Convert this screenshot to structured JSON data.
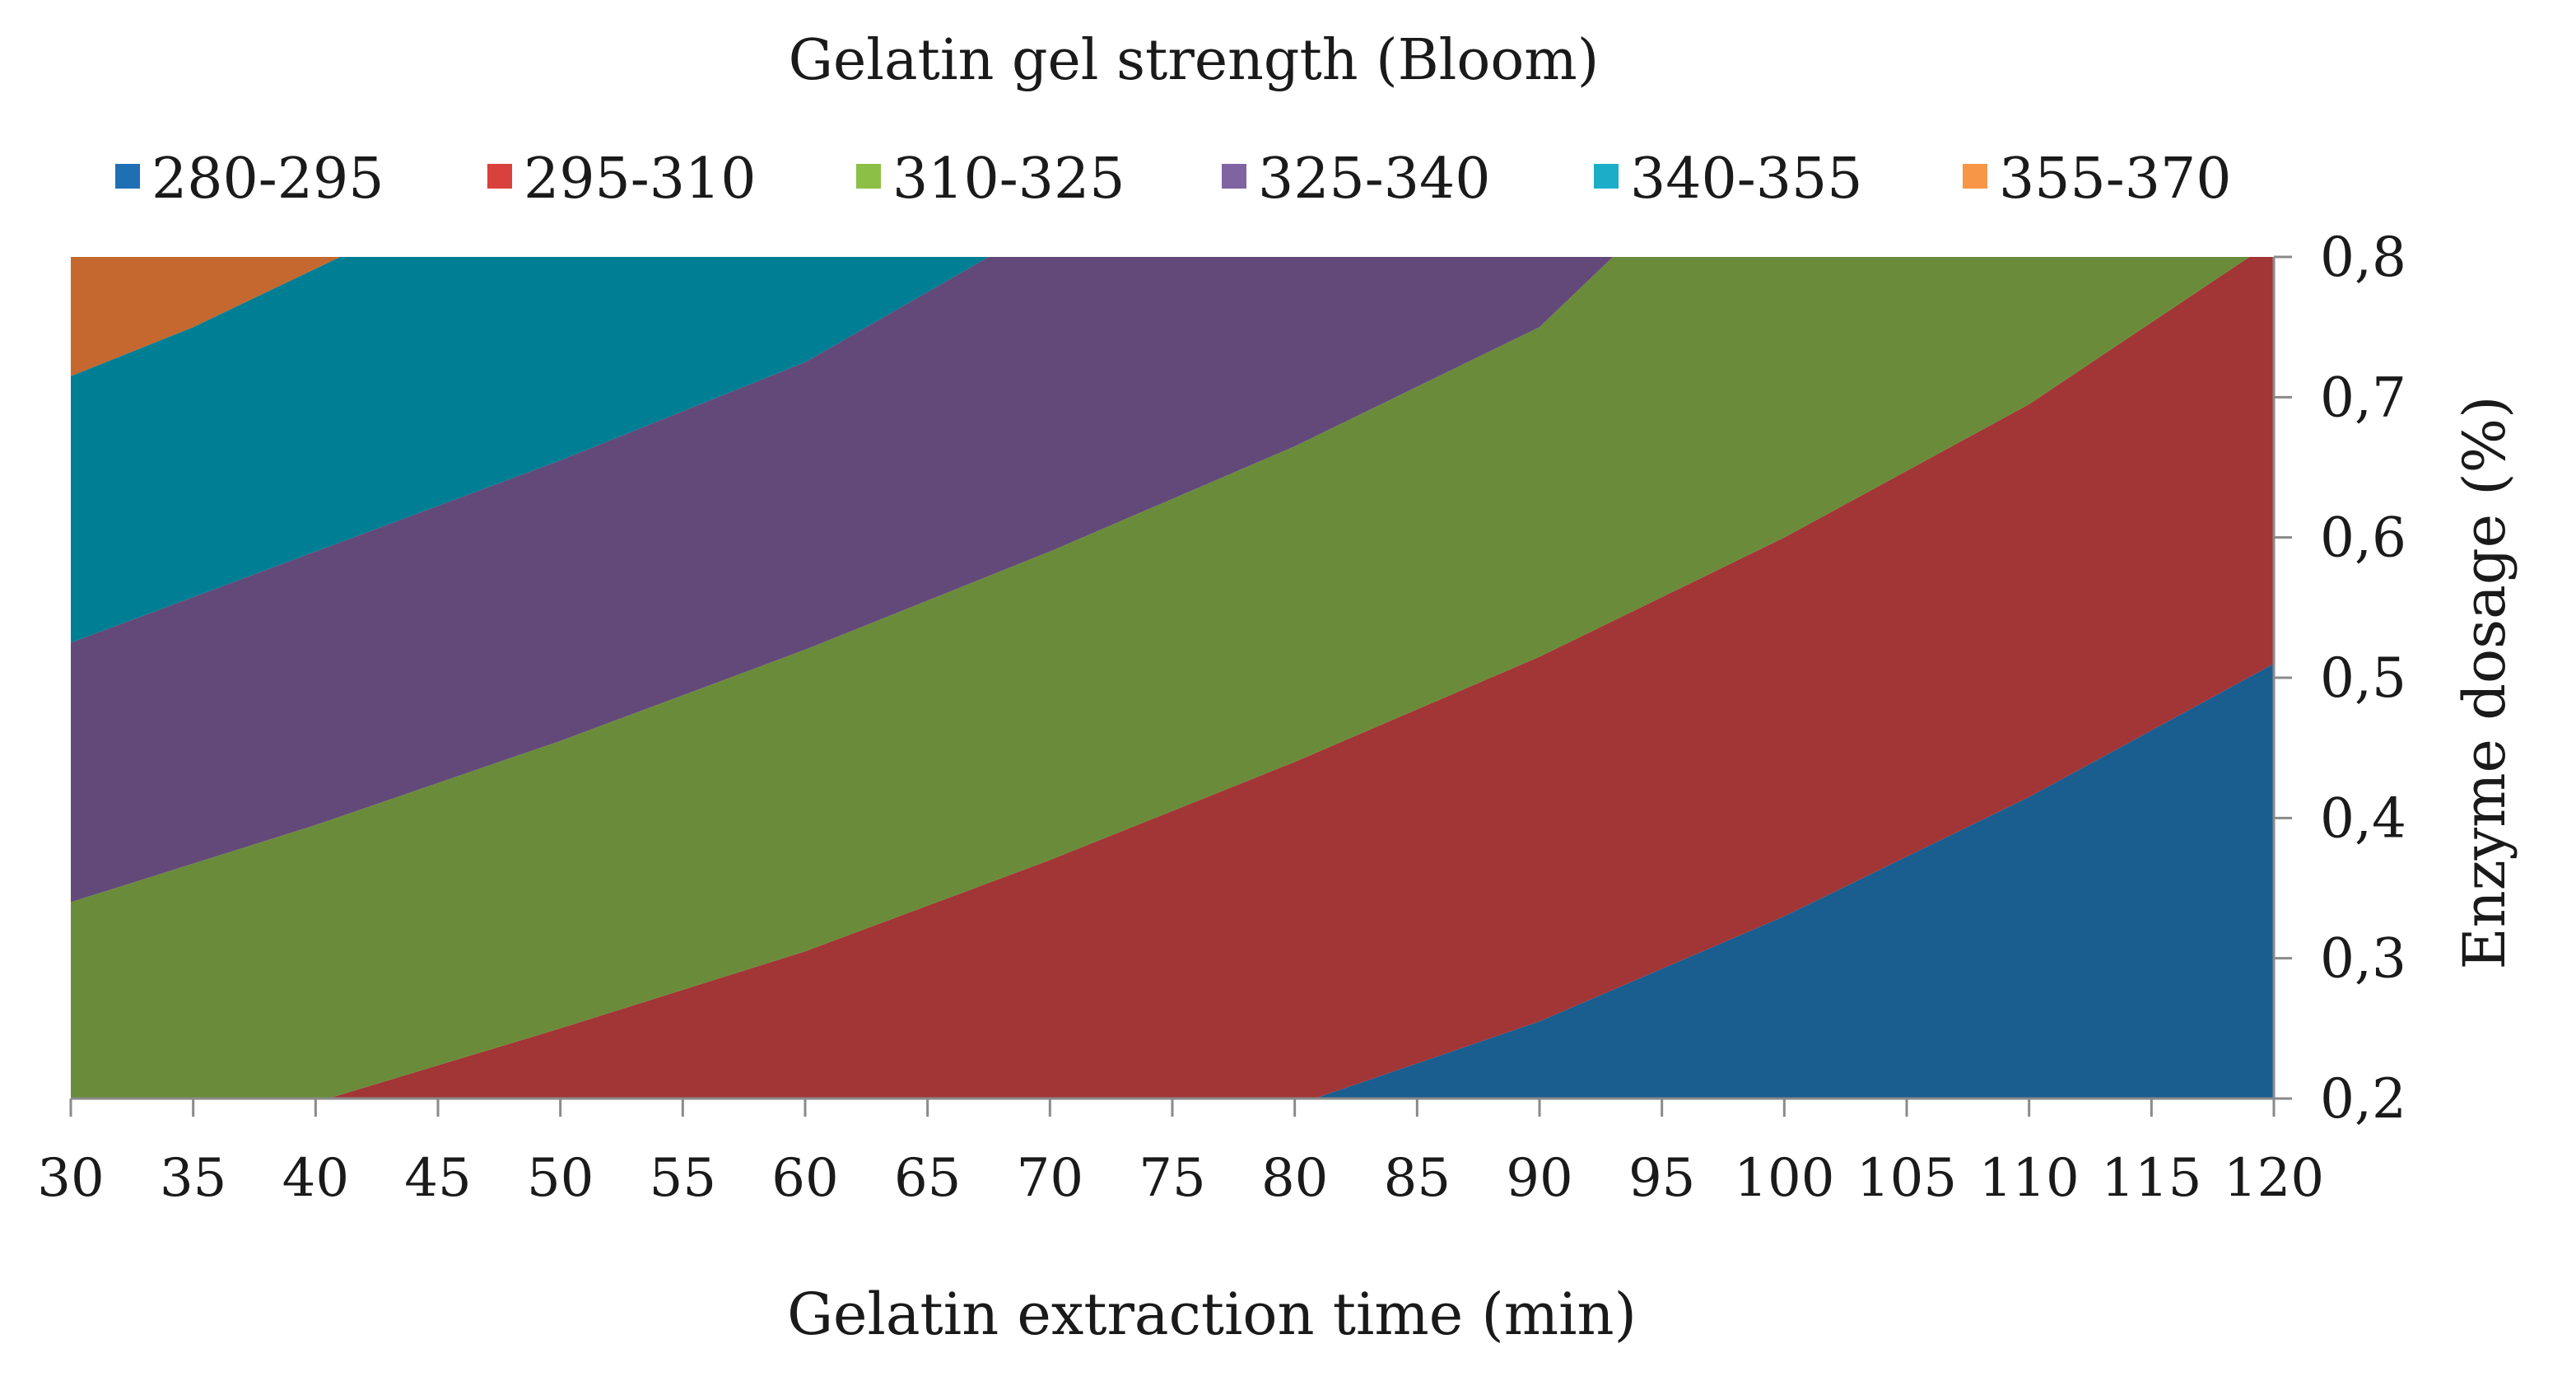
{
  "chart_data": {
    "type": "contour",
    "title": "Gelatin gel strength (Bloom)",
    "xlabel": "Gelatin extraction time (min)",
    "ylabel": "Enzyme dosage (%)",
    "xlim": [
      30,
      120
    ],
    "ylim": [
      0.2,
      0.8
    ],
    "x_ticks": [
      "30",
      "35",
      "40",
      "45",
      "50",
      "55",
      "60",
      "65",
      "70",
      "75",
      "80",
      "85",
      "90",
      "95",
      "100",
      "105",
      "110",
      "115",
      "120"
    ],
    "y_ticks": [
      "0,2",
      "0,3",
      "0,4",
      "0,5",
      "0,6",
      "0,7",
      "0,8"
    ],
    "legend": [
      {
        "label": "280-295",
        "color": "#1F6FB5"
      },
      {
        "label": "295-310",
        "color": "#D9413C"
      },
      {
        "label": "310-325",
        "color": "#8CBF45"
      },
      {
        "label": "325-340",
        "color": "#8064A2"
      },
      {
        "label": "340-355",
        "color": "#1CADC9"
      },
      {
        "label": "355-370",
        "color": "#F79646"
      }
    ],
    "legend_position": "top",
    "regions": [
      {
        "range": "280-295",
        "fill": "#195E8F"
      },
      {
        "range": "295-310",
        "fill": "#A23536"
      },
      {
        "range": "310-325",
        "fill": "#6A8C3A"
      },
      {
        "range": "325-340",
        "fill": "#634979"
      },
      {
        "range": "340-355",
        "fill": "#007E93"
      },
      {
        "range": "355-370",
        "fill": "#C4682F"
      }
    ],
    "boundaries": [
      {
        "level": 295,
        "points": [
          [
            80.8,
            0.2
          ],
          [
            90,
            0.255
          ],
          [
            100,
            0.33
          ],
          [
            110,
            0.415
          ],
          [
            120,
            0.51
          ]
        ]
      },
      {
        "level": 310,
        "points": [
          [
            40.5,
            0.2
          ],
          [
            50,
            0.25
          ],
          [
            60,
            0.305
          ],
          [
            70,
            0.37
          ],
          [
            80,
            0.44
          ],
          [
            90,
            0.515
          ],
          [
            100,
            0.6
          ],
          [
            110,
            0.695
          ],
          [
            119,
            0.8
          ]
        ]
      },
      {
        "level": 325,
        "points": [
          [
            30,
            0.34
          ],
          [
            40,
            0.395
          ],
          [
            50,
            0.455
          ],
          [
            60,
            0.52
          ],
          [
            70,
            0.59
          ],
          [
            80,
            0.665
          ],
          [
            90,
            0.75
          ],
          [
            93,
            0.8
          ]
        ]
      },
      {
        "level": 340,
        "points": [
          [
            30,
            0.525
          ],
          [
            40,
            0.59
          ],
          [
            50,
            0.655
          ],
          [
            60,
            0.725
          ],
          [
            67.5,
            0.8
          ]
        ]
      },
      {
        "level": 355,
        "points": [
          [
            30,
            0.715
          ],
          [
            35,
            0.75
          ],
          [
            41,
            0.8
          ]
        ]
      }
    ]
  }
}
